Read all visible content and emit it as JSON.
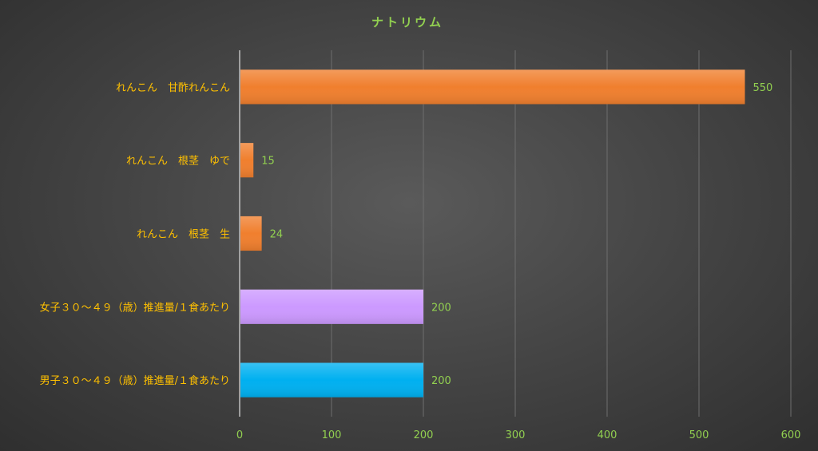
{
  "chart_data": {
    "type": "bar",
    "orientation": "horizontal",
    "title": "ナトリウム",
    "categories": [
      "れんこん　甘酢れんこん",
      "れんこん　根茎　ゆで",
      "れんこん　根茎　生",
      "女子３０～４９（歳）推進量/１食あたり",
      "男子３０～４９（歳）推進量/１食あたり"
    ],
    "values": [
      550,
      15,
      24,
      200,
      200
    ],
    "bar_colors": [
      "#f07f2e",
      "#f07f2e",
      "#f07f2e",
      "#cc99ff",
      "#00b0f0"
    ],
    "xlim": [
      0,
      600
    ],
    "xticks": [
      "0",
      "100",
      "200",
      "300",
      "400",
      "500",
      "600"
    ],
    "grid": true,
    "legend": "none"
  }
}
